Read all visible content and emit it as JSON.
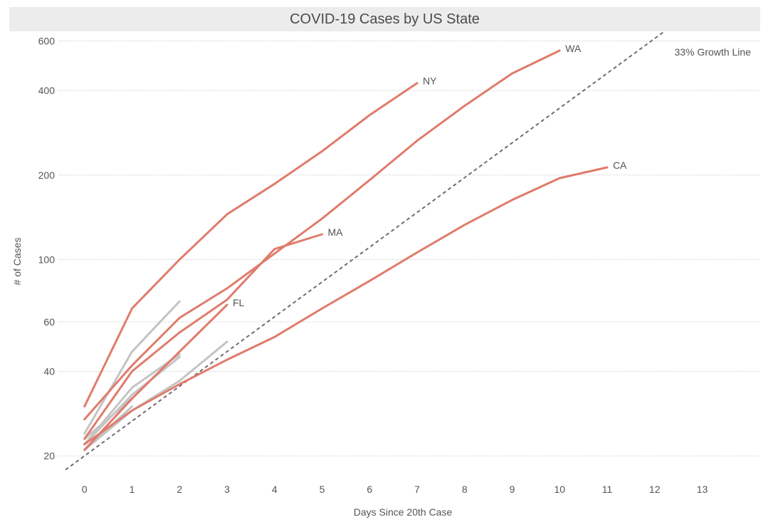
{
  "chart_data": {
    "type": "line",
    "title": "COVID-19 Cases by US State",
    "xlabel": "Days Since 20th Case",
    "ylabel": "# of Cases",
    "yscale": "log",
    "xlim": [
      -0.4,
      13.8
    ],
    "ylim": [
      17,
      620
    ],
    "x_ticks": [
      0,
      1,
      2,
      3,
      4,
      5,
      6,
      7,
      8,
      9,
      10,
      11,
      12,
      13
    ],
    "y_ticks": [
      20,
      40,
      60,
      100,
      200,
      400,
      600
    ],
    "grid": "horizontal dotted",
    "colors": {
      "highlight": "#e07b6b",
      "other": "#c4c4c4",
      "reference": "#6e6e6e"
    },
    "reference_line": {
      "label": "33% Growth Line",
      "start": 20,
      "growth_rate": 0.33,
      "x_range": [
        -0.4,
        12.2
      ]
    },
    "series": [
      {
        "name": "WA",
        "highlight": true,
        "x": [
          0,
          1,
          2,
          3,
          4,
          5,
          6,
          7,
          8,
          9,
          10
        ],
        "values": [
          27,
          42,
          62,
          79,
          105,
          140,
          192,
          265,
          353,
          460,
          555
        ]
      },
      {
        "name": "NY",
        "highlight": true,
        "x": [
          0,
          1,
          2,
          3,
          4,
          5,
          6,
          7
        ],
        "values": [
          30,
          67,
          100,
          145,
          186,
          243,
          327,
          425
        ]
      },
      {
        "name": "CA",
        "highlight": true,
        "x": [
          0,
          1,
          2,
          3,
          4,
          5,
          6,
          7,
          8,
          9,
          10,
          11
        ],
        "values": [
          22,
          29,
          36,
          44,
          53,
          67,
          84,
          106,
          133,
          163,
          195,
          213
        ]
      },
      {
        "name": "MA",
        "highlight": true,
        "x": [
          0,
          1,
          2,
          3,
          4,
          5
        ],
        "values": [
          23,
          40,
          55,
          72,
          109,
          123
        ]
      },
      {
        "name": "FL",
        "highlight": true,
        "x": [
          0,
          1,
          2,
          3
        ],
        "values": [
          21,
          32,
          47,
          69
        ]
      },
      {
        "x": [
          0,
          1,
          2
        ],
        "values": [
          24,
          47,
          71
        ]
      },
      {
        "x": [
          0,
          1,
          2
        ],
        "values": [
          22,
          35,
          46
        ]
      },
      {
        "x": [
          0,
          1,
          2
        ],
        "values": [
          22,
          33,
          45
        ]
      },
      {
        "x": [
          0,
          1,
          2,
          3
        ],
        "values": [
          21,
          29,
          37,
          51
        ]
      },
      {
        "x": [
          0,
          1
        ],
        "values": [
          23,
          32
        ]
      },
      {
        "x": [
          0,
          1
        ],
        "values": [
          21,
          30
        ]
      }
    ]
  }
}
